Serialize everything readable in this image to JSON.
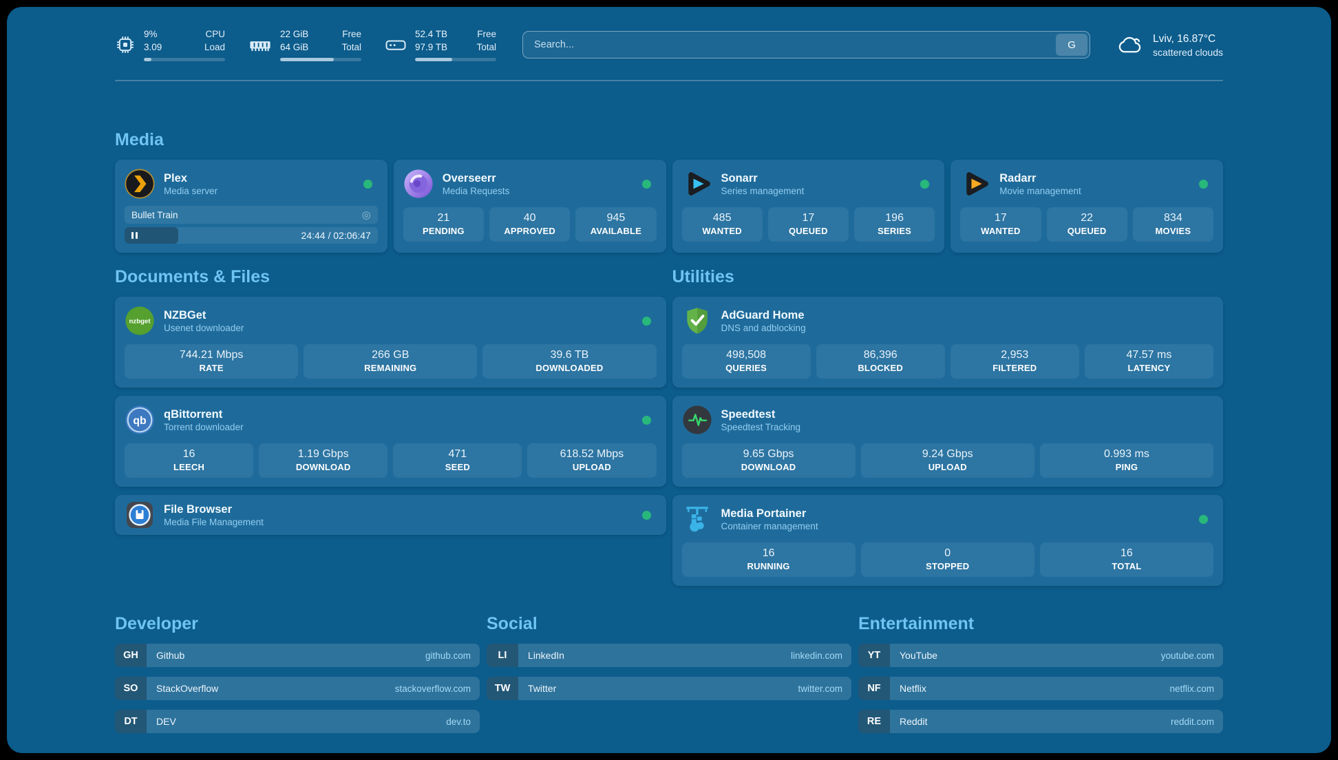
{
  "header": {
    "system_stats": [
      {
        "icon": "cpu-icon",
        "value_top": "9%",
        "value_bottom": "3.09",
        "label_top": "CPU",
        "label_bottom": "Load",
        "progress": 9
      },
      {
        "icon": "memory-icon",
        "value_top": "22 GiB",
        "value_bottom": "64 GiB",
        "label_top": "Free",
        "label_bottom": "Total",
        "progress": 66
      },
      {
        "icon": "disk-icon",
        "value_top": "52.4 TB",
        "value_bottom": "97.9 TB",
        "label_top": "Free",
        "label_bottom": "Total",
        "progress": 46
      }
    ],
    "search": {
      "placeholder": "Search...",
      "engine_button_label": "G"
    },
    "weather": {
      "icon": "cloud-icon",
      "location": "Lviv, 16.87°C",
      "condition": "scattered clouds"
    }
  },
  "media": {
    "title": "Media",
    "apps": [
      {
        "id": "plex",
        "name": "Plex",
        "subtitle": "Media server",
        "icon": "plex-icon",
        "online": true,
        "player": {
          "now_playing": "Bullet Train",
          "time": "24:44 / 02:06:47"
        }
      },
      {
        "id": "overseerr",
        "name": "Overseerr",
        "subtitle": "Media Requests",
        "icon": "overseerr-icon",
        "online": true,
        "stats": [
          {
            "value": "21",
            "label": "PENDING"
          },
          {
            "value": "40",
            "label": "APPROVED"
          },
          {
            "value": "945",
            "label": "AVAILABLE"
          }
        ]
      },
      {
        "id": "sonarr",
        "name": "Sonarr",
        "subtitle": "Series management",
        "icon": "sonarr-icon",
        "online": true,
        "stats": [
          {
            "value": "485",
            "label": "WANTED"
          },
          {
            "value": "17",
            "label": "QUEUED"
          },
          {
            "value": "196",
            "label": "SERIES"
          }
        ]
      },
      {
        "id": "radarr",
        "name": "Radarr",
        "subtitle": "Movie management",
        "icon": "radarr-icon",
        "online": true,
        "stats": [
          {
            "value": "17",
            "label": "WANTED"
          },
          {
            "value": "22",
            "label": "QUEUED"
          },
          {
            "value": "834",
            "label": "MOVIES"
          }
        ]
      }
    ]
  },
  "documents": {
    "title": "Documents & Files",
    "apps": [
      {
        "id": "nzbget",
        "name": "NZBGet",
        "subtitle": "Usenet downloader",
        "icon": "nzbget-icon",
        "online": true,
        "stats": [
          {
            "value": "744.21 Mbps",
            "label": "RATE"
          },
          {
            "value": "266 GB",
            "label": "REMAINING"
          },
          {
            "value": "39.6 TB",
            "label": "DOWNLOADED"
          }
        ]
      },
      {
        "id": "qbittorrent",
        "name": "qBittorrent",
        "subtitle": "Torrent downloader",
        "icon": "qbittorrent-icon",
        "online": true,
        "stats": [
          {
            "value": "16",
            "label": "LEECH"
          },
          {
            "value": "1.19 Gbps",
            "label": "DOWNLOAD"
          },
          {
            "value": "471",
            "label": "SEED"
          },
          {
            "value": "618.52 Mbps",
            "label": "UPLOAD"
          }
        ]
      },
      {
        "id": "filebrowser",
        "name": "File Browser",
        "subtitle": "Media File Management",
        "icon": "filebrowser-icon",
        "online": true
      }
    ]
  },
  "utilities": {
    "title": "Utilities",
    "apps": [
      {
        "id": "adguard",
        "name": "AdGuard Home",
        "subtitle": "DNS and adblocking",
        "icon": "adguard-icon",
        "online": false,
        "stats": [
          {
            "value": "498,508",
            "label": "QUERIES"
          },
          {
            "value": "86,396",
            "label": "BLOCKED"
          },
          {
            "value": "2,953",
            "label": "FILTERED"
          },
          {
            "value": "47.57 ms",
            "label": "LATENCY"
          }
        ]
      },
      {
        "id": "speedtest",
        "name": "Speedtest",
        "subtitle": "Speedtest Tracking",
        "icon": "speedtest-icon",
        "online": false,
        "stats": [
          {
            "value": "9.65 Gbps",
            "label": "DOWNLOAD"
          },
          {
            "value": "9.24 Gbps",
            "label": "UPLOAD"
          },
          {
            "value": "0.993 ms",
            "label": "PING"
          }
        ]
      },
      {
        "id": "portainer",
        "name": "Media Portainer",
        "subtitle": "Container management",
        "icon": "portainer-icon",
        "online": true,
        "stats": [
          {
            "value": "16",
            "label": "RUNNING"
          },
          {
            "value": "0",
            "label": "STOPPED"
          },
          {
            "value": "16",
            "label": "TOTAL"
          }
        ]
      }
    ]
  },
  "bookmarks": [
    {
      "title": "Developer",
      "items": [
        {
          "abbr": "GH",
          "name": "Github",
          "url": "github.com"
        },
        {
          "abbr": "SO",
          "name": "StackOverflow",
          "url": "stackoverflow.com"
        },
        {
          "abbr": "DT",
          "name": "DEV",
          "url": "dev.to"
        }
      ]
    },
    {
      "title": "Social",
      "items": [
        {
          "abbr": "LI",
          "name": "LinkedIn",
          "url": "linkedin.com"
        },
        {
          "abbr": "TW",
          "name": "Twitter",
          "url": "twitter.com"
        }
      ]
    },
    {
      "title": "Entertainment",
      "items": [
        {
          "abbr": "YT",
          "name": "YouTube",
          "url": "youtube.com"
        },
        {
          "abbr": "NF",
          "name": "Netflix",
          "url": "netflix.com"
        },
        {
          "abbr": "RE",
          "name": "Reddit",
          "url": "reddit.com"
        }
      ]
    }
  ],
  "colors": {
    "background": "#0c5c8c",
    "card": "#1e6b9b",
    "accent": "#6fc5f2",
    "status_online": "#29b87b"
  }
}
